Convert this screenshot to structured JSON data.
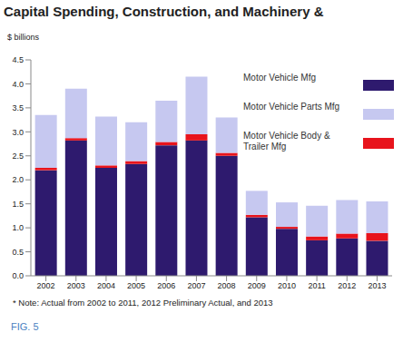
{
  "chart_data": {
    "type": "bar",
    "title": "Capital Spending, Construction, and Machinery &",
    "y_label": "$ billions",
    "annotations": [
      "* Note:  Actual from 2002 to 2011, 2012 Preliminary Actual, and 2013",
      "FIG. 5"
    ],
    "categories": [
      "2002",
      "2003",
      "2004",
      "2005",
      "2006",
      "2007",
      "2008",
      "2009",
      "2010",
      "2011",
      "2012",
      "2013"
    ],
    "series": [
      {
        "name": "Motor Vehicle Mfg",
        "color": "#2e1a6e",
        "values": [
          2.2,
          2.82,
          2.25,
          2.33,
          2.72,
          2.82,
          2.5,
          1.22,
          0.98,
          0.74,
          0.78,
          0.73
        ]
      },
      {
        "name": "Motor Vehicle Parts Mfg",
        "color": "#c6c8f0",
        "values": [
          1.1,
          1.03,
          1.02,
          0.81,
          0.86,
          1.2,
          0.74,
          0.5,
          0.51,
          0.64,
          0.7,
          0.66
        ]
      },
      {
        "name": "Motor Vehicle Body & Trailer Mfg",
        "color": "#e8141c",
        "values": [
          0.05,
          0.05,
          0.05,
          0.06,
          0.07,
          0.13,
          0.06,
          0.05,
          0.04,
          0.08,
          0.1,
          0.16
        ]
      }
    ],
    "stacked": true,
    "grid": false,
    "legend": "upper right",
    "ylim": [
      0,
      4.5
    ],
    "yticks": [
      {
        "value": 0,
        "label": "0.0"
      },
      0.5,
      {
        "value": 1,
        "label": "1.0"
      },
      1.5,
      {
        "value": 2,
        "label": "2.0"
      },
      2.5,
      {
        "value": 3,
        "label": "3.0"
      },
      3.5,
      {
        "value": 4,
        "label": "4.0"
      },
      4.5
    ]
  }
}
